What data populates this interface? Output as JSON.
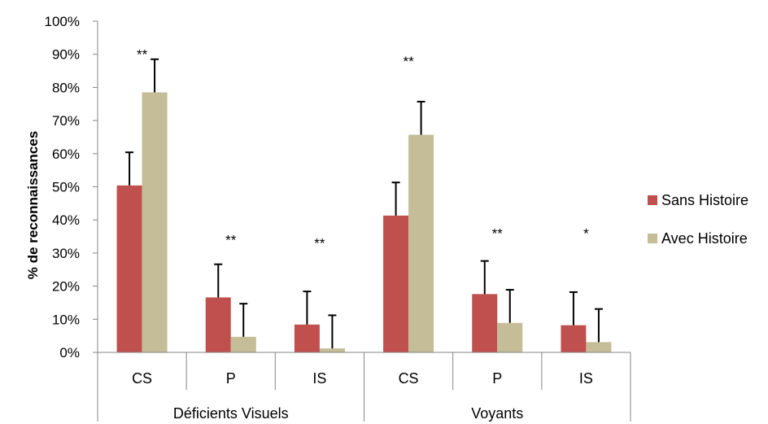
{
  "chart_data": {
    "type": "bar",
    "title": "",
    "ylabel": "% de reconnaissances",
    "xlabel": "",
    "ylim": [
      0,
      100
    ],
    "y_ticks": [
      0,
      10,
      20,
      30,
      40,
      50,
      60,
      70,
      80,
      90,
      100
    ],
    "y_tick_labels": [
      "0%",
      "10%",
      "20%",
      "30%",
      "40%",
      "50%",
      "60%",
      "70%",
      "80%",
      "90%",
      "100%"
    ],
    "grid": false,
    "legend_position": "right",
    "groups": [
      {
        "label": "Déficients Visuels",
        "categories": [
          "CS",
          "P",
          "IS"
        ]
      },
      {
        "label": "Voyants",
        "categories": [
          "CS",
          "P",
          "IS"
        ]
      }
    ],
    "categories": [
      "CS",
      "P",
      "IS",
      "CS",
      "P",
      "IS"
    ],
    "series": [
      {
        "name": "Sans Histoire",
        "color": "#c0504d",
        "values": [
          50.4,
          16.6,
          8.4,
          41.3,
          17.6,
          8.2
        ],
        "errors": [
          10.0,
          10.0,
          10.0,
          10.0,
          10.0,
          10.0
        ]
      },
      {
        "name": "Avec Histoire",
        "color": "#c4bd97",
        "values": [
          78.5,
          4.7,
          1.2,
          65.7,
          8.9,
          3.1
        ],
        "errors": [
          10.0,
          10.0,
          10.0,
          10.0,
          10.0,
          10.0
        ]
      }
    ],
    "significance": [
      "**",
      "**",
      "**",
      "**",
      "**",
      "*"
    ],
    "significance_y": [
      90,
      34,
      33,
      88,
      36,
      36
    ]
  }
}
